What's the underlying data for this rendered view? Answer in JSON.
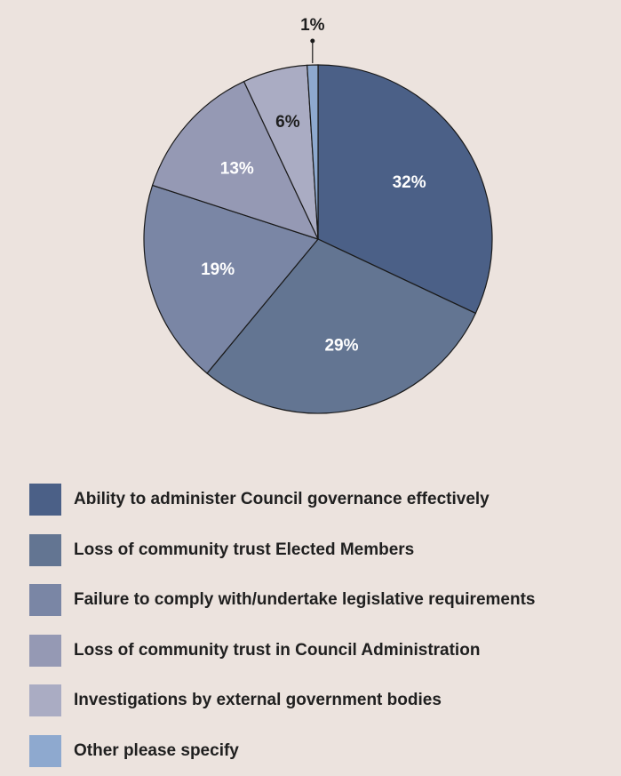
{
  "chart_data": {
    "type": "pie",
    "title": "",
    "slices": [
      {
        "label": "Ability to administer Council governance effectively",
        "value": 32,
        "display": "32%",
        "color": "#4b6087"
      },
      {
        "label": "Loss of community trust Elected Members",
        "value": 29,
        "display": "29%",
        "color": "#637592"
      },
      {
        "label": "Failure to comply with/undertake legislative requirements",
        "value": 19,
        "display": "19%",
        "color": "#7a86a5"
      },
      {
        "label": "Loss of community trust in Council Administration",
        "value": 13,
        "display": "13%",
        "color": "#9599b4"
      },
      {
        "label": "Investigations by external government bodies",
        "value": 6,
        "display": "6%",
        "color": "#aaacc3"
      },
      {
        "label": "Other please specify",
        "value": 1,
        "display": "1%",
        "color": "#8ea9cf"
      }
    ],
    "label_colors": {
      "inside": "#ffffff",
      "dark": "#1f1f1f"
    },
    "legend_position": "bottom"
  }
}
